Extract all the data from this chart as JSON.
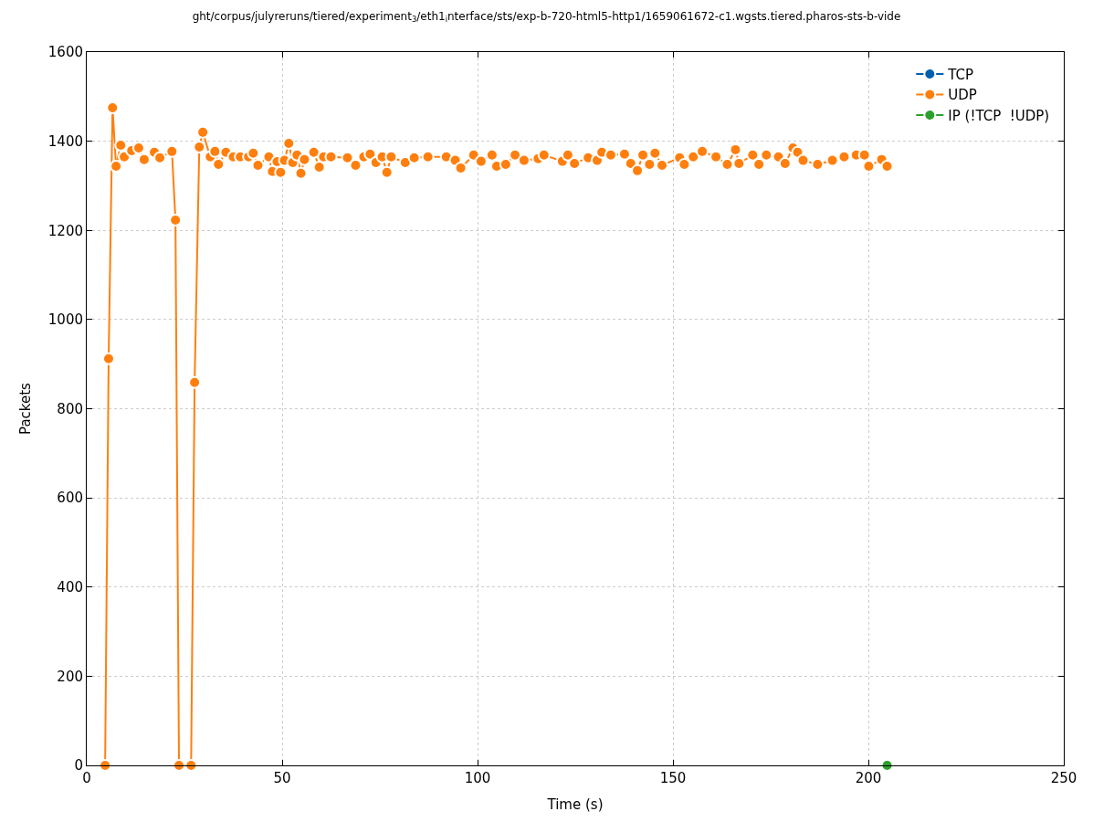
{
  "chart_data": {
    "type": "line",
    "title": "ght/corpus/julyreruns/tiered/experiment$_{3}$/eth1$_{i}$nterface/sts/exp-b-720-html5-http1/1659061672-c1.wgsts.tiered.pharos-sts-b-vide",
    "xlabel": "Time (s)",
    "ylabel": "Packets",
    "xlim": [
      0,
      250
    ],
    "xticks": [
      0,
      50,
      100,
      150,
      200,
      250
    ],
    "ylim": [
      0,
      1600
    ],
    "yticks": [
      0,
      200,
      400,
      600,
      800,
      1000,
      1200,
      1400,
      1600
    ],
    "grid": true,
    "legend": "top right",
    "marker": "circle",
    "line_style": "solid",
    "series": [
      {
        "name": "TCP",
        "color": "#0060ad"
      },
      {
        "name": "UDP",
        "color": "#ff7f0e",
        "x": [
          4.7,
          5.6,
          6.6,
          7.5,
          8.7,
          9.6,
          11.5,
          13.3,
          14.7,
          17.3,
          18.7,
          21.8,
          22.7,
          23.6,
          26.7,
          27.6,
          28.8,
          29.7,
          31.6,
          32.8,
          33.7,
          35.6,
          37.5,
          39.3,
          41.4,
          42.6,
          43.8,
          46.6,
          47.5,
          48.7,
          49.6,
          50.6,
          51.7,
          52.7,
          53.8,
          54.8,
          55.7,
          58.1,
          59.5,
          60.6,
          62.5,
          66.7,
          68.8,
          70.9,
          72.5,
          74.0,
          75.6,
          76.8,
          77.9,
          81.5,
          83.8,
          87.3,
          92.0,
          94.3,
          95.7,
          99.0,
          100.9,
          103.7,
          104.9,
          107.2,
          109.6,
          111.9,
          115.5,
          117.0,
          121.7,
          123.1,
          124.8,
          128.3,
          130.6,
          131.8,
          134.1,
          137.6,
          139.2,
          140.9,
          142.3,
          144.0,
          145.4,
          147.2,
          151.7,
          152.9,
          155.2,
          157.5,
          161.0,
          163.9,
          166.0,
          166.9,
          170.4,
          172.0,
          173.9,
          177.0,
          178.7,
          180.7,
          181.9,
          183.3,
          187.0,
          190.8,
          193.8,
          196.9,
          199.0,
          200.1,
          203.4,
          204.8
        ],
        "values": [
          0,
          912,
          1475,
          1344,
          1391,
          1365,
          1379,
          1385,
          1359,
          1375,
          1363,
          1377,
          1223,
          0,
          0,
          859,
          1387,
          1420,
          1365,
          1377,
          1348,
          1375,
          1365,
          1365,
          1365,
          1373,
          1346,
          1365,
          1332,
          1354,
          1330,
          1357,
          1395,
          1352,
          1369,
          1328,
          1359,
          1375,
          1342,
          1365,
          1365,
          1363,
          1346,
          1365,
          1371,
          1352,
          1365,
          1330,
          1365,
          1352,
          1363,
          1365,
          1365,
          1357,
          1340,
          1369,
          1355,
          1369,
          1344,
          1348,
          1369,
          1357,
          1361,
          1369,
          1355,
          1369,
          1350,
          1363,
          1357,
          1375,
          1369,
          1371,
          1350,
          1334,
          1369,
          1348,
          1373,
          1346,
          1363,
          1348,
          1365,
          1377,
          1365,
          1348,
          1381,
          1350,
          1369,
          1348,
          1369,
          1365,
          1350,
          1385,
          1375,
          1357,
          1348,
          1357,
          1365,
          1369,
          1369,
          1344,
          1359,
          1344
        ]
      },
      {
        "name": "IP (!TCP  !UDP)",
        "color": "#2ca02c",
        "x": [
          204.8
        ],
        "values": [
          0
        ]
      }
    ]
  }
}
